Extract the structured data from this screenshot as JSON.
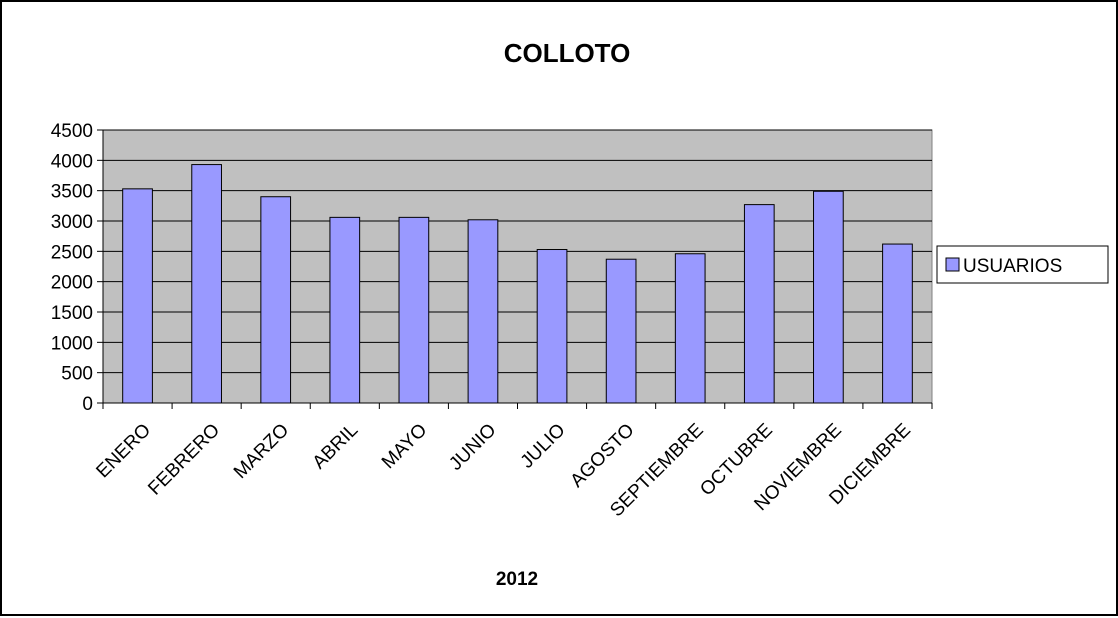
{
  "chart_data": {
    "type": "bar",
    "title": "COLLOTO",
    "xlabel": "2012",
    "ylabel": "",
    "ylim": [
      0,
      4500
    ],
    "yticks": [
      0,
      500,
      1000,
      1500,
      2000,
      2500,
      3000,
      3500,
      4000,
      4500
    ],
    "categories": [
      "ENERO",
      "FEBRERO",
      "MARZO",
      "ABRIL",
      "MAYO",
      "JUNIO",
      "JULIO",
      "AGOSTO",
      "SEPTIEMBRE",
      "OCTUBRE",
      "NOVIEMBRE",
      "DICIEMBRE"
    ],
    "series": [
      {
        "name": "USUARIOS",
        "color": "#9999ff",
        "values": [
          3530,
          3930,
          3400,
          3060,
          3060,
          3020,
          2530,
          2370,
          2460,
          3270,
          3490,
          2620
        ]
      }
    ],
    "grid": true,
    "plot_background": "#c0c0c0",
    "legend_position": "right"
  }
}
